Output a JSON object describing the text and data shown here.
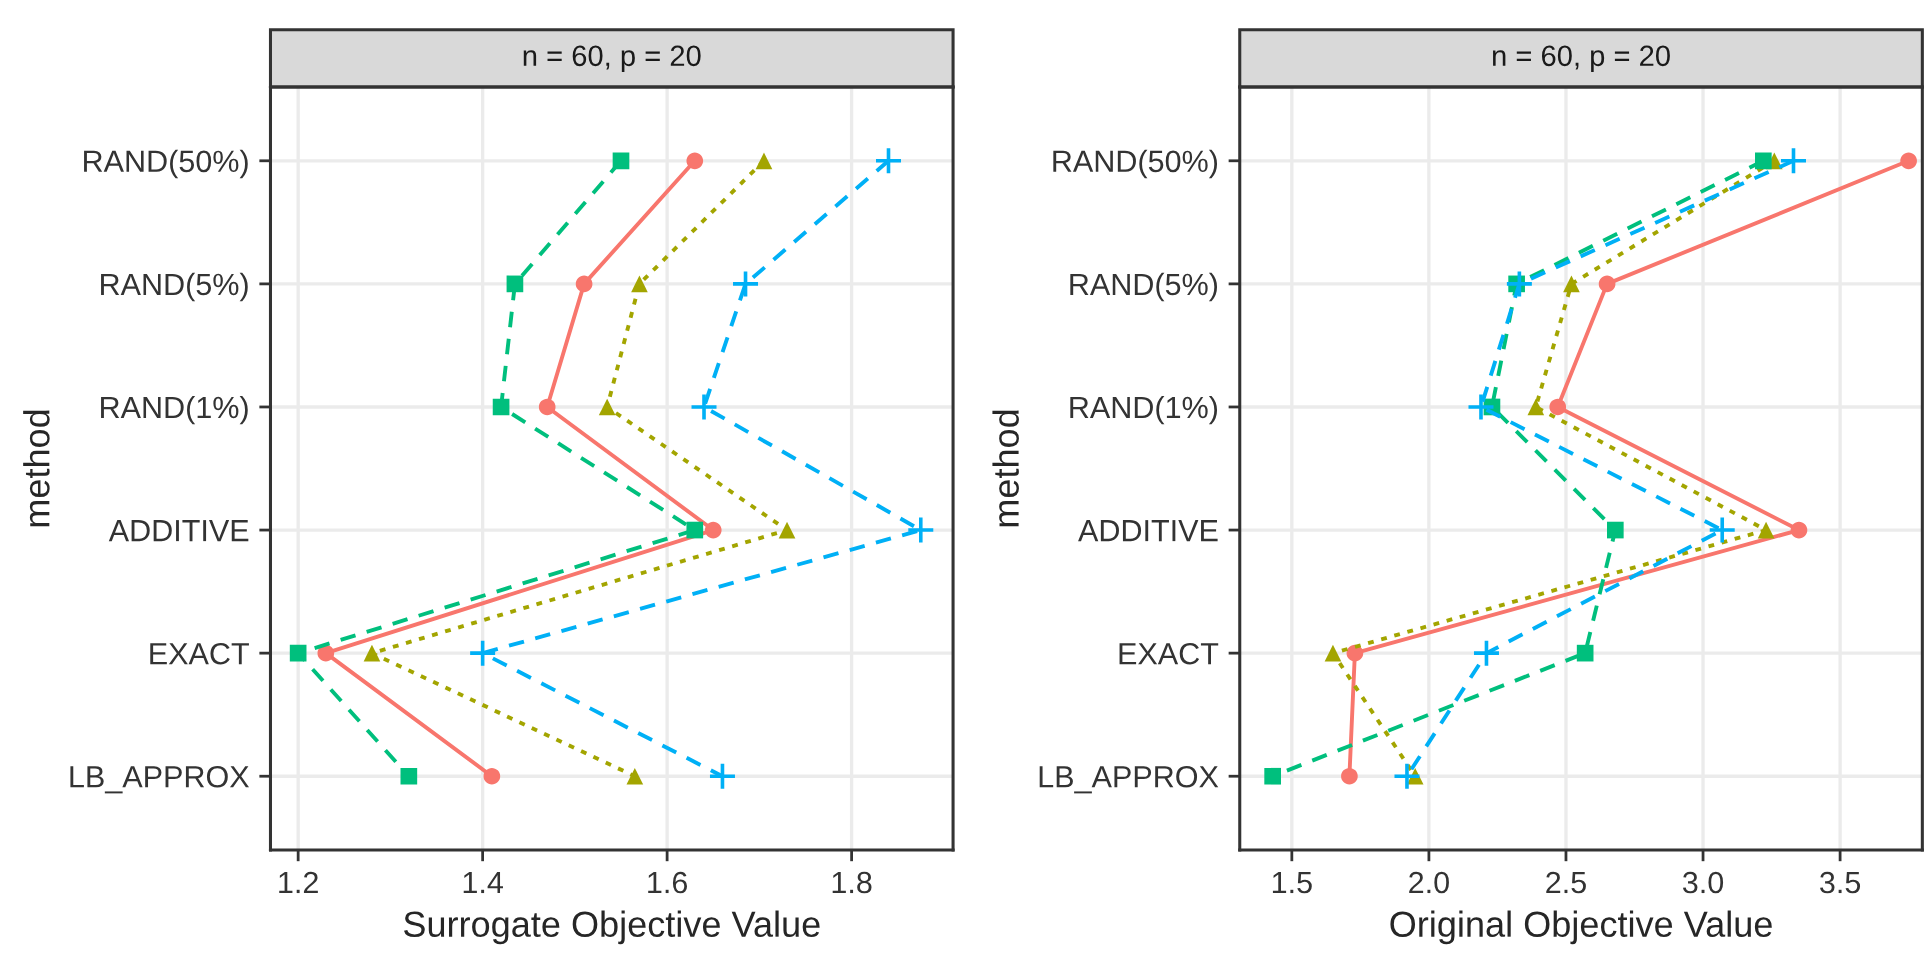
{
  "chart_data": [
    {
      "type": "line",
      "orientation": "horizontal",
      "title": "n = 60, p = 20",
      "xlabel": "Surrogate Objective Value",
      "ylabel": "method",
      "categories": [
        "RAND(50%)",
        "RAND(5%)",
        "RAND(1%)",
        "ADDITIVE",
        "EXACT",
        "LB_APPROX"
      ],
      "xlim": [
        1.17,
        1.91
      ],
      "xticks": [
        1.2,
        1.4,
        1.6,
        1.8
      ],
      "grid": true,
      "series": [
        {
          "color": "#F8766D",
          "marker": "circle",
          "line_style": "solid",
          "values": [
            1.63,
            1.51,
            1.47,
            1.65,
            1.23,
            1.41
          ]
        },
        {
          "color": "#A3A500",
          "marker": "triangle",
          "line_style": "dotted",
          "values": [
            1.705,
            1.57,
            1.535,
            1.73,
            1.28,
            1.565
          ]
        },
        {
          "color": "#00BF7D",
          "marker": "square",
          "line_style": "dashed",
          "values": [
            1.55,
            1.435,
            1.42,
            1.63,
            1.2,
            1.32
          ]
        },
        {
          "color": "#00B0F6",
          "marker": "cross",
          "line_style": "dashed",
          "values": [
            1.84,
            1.685,
            1.64,
            1.875,
            1.4,
            1.66
          ]
        }
      ]
    },
    {
      "type": "line",
      "orientation": "horizontal",
      "title": "n = 60, p = 20",
      "xlabel": "Original Objective Value",
      "ylabel": "method",
      "categories": [
        "RAND(50%)",
        "RAND(5%)",
        "RAND(1%)",
        "ADDITIVE",
        "EXACT",
        "LB_APPROX"
      ],
      "xlim": [
        1.31,
        3.8
      ],
      "xticks": [
        1.5,
        {
          "value": 2,
          "label": "2.0"
        },
        2.5,
        {
          "value": 3,
          "label": "3.0"
        },
        3.5
      ],
      "grid": true,
      "series": [
        {
          "color": "#F8766D",
          "marker": "circle",
          "line_style": "solid",
          "values": [
            3.75,
            2.65,
            2.47,
            3.35,
            1.73,
            1.71
          ]
        },
        {
          "color": "#A3A500",
          "marker": "triangle",
          "line_style": "dotted",
          "values": [
            3.26,
            2.52,
            2.39,
            3.23,
            1.65,
            1.95
          ]
        },
        {
          "color": "#00BF7D",
          "marker": "square",
          "line_style": "dashed",
          "values": [
            3.22,
            2.32,
            2.23,
            2.68,
            2.57,
            1.43
          ]
        },
        {
          "color": "#00B0F6",
          "marker": "cross",
          "line_style": "dashed",
          "values": [
            3.33,
            2.33,
            2.19,
            3.07,
            2.21,
            1.92
          ]
        }
      ]
    }
  ]
}
